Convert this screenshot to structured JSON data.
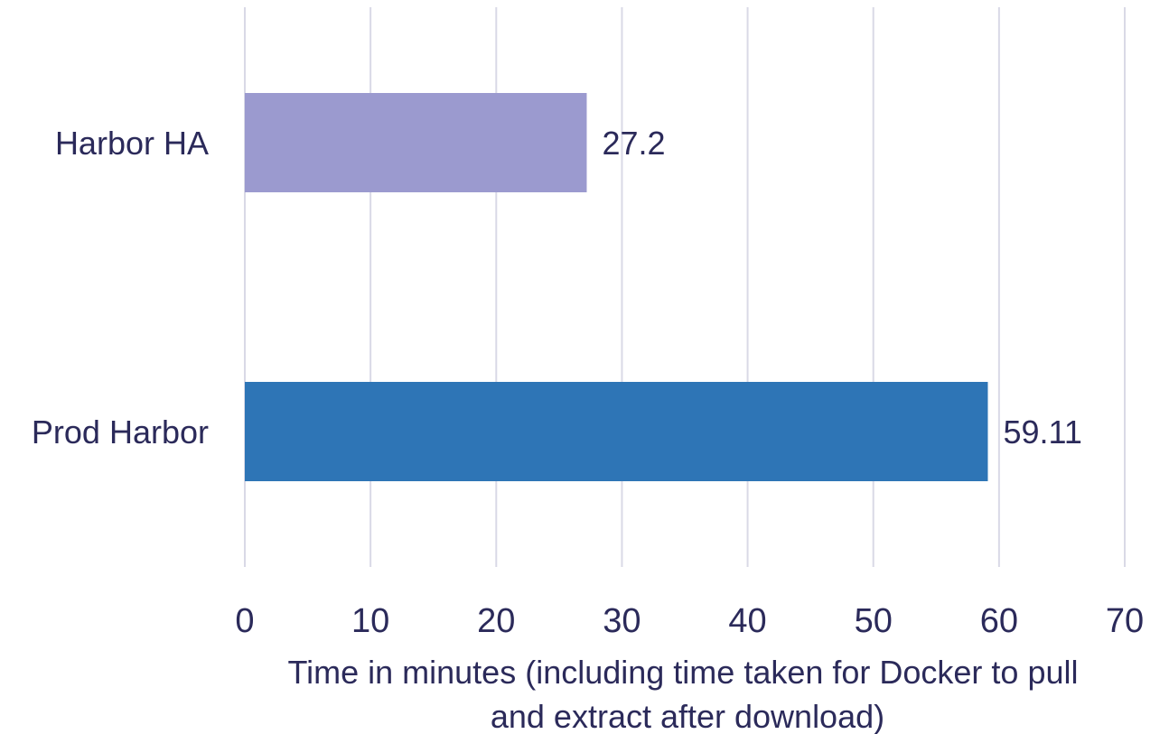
{
  "chart_data": {
    "type": "bar",
    "orientation": "horizontal",
    "categories": [
      "Harbor HA",
      "Prod Harbor"
    ],
    "values": [
      27.2,
      59.11
    ],
    "data_labels": [
      "27.2",
      "59.11"
    ],
    "colors": [
      "#9b9acf",
      "#2e75b6"
    ],
    "title": "",
    "xlabel": "Time in minutes (including time taken for Docker to pull and extract after download)",
    "xlabel_lines": [
      "Time in minutes (including time taken for Docker to pull",
      "and extract after download)"
    ],
    "ylabel": "",
    "xlim": [
      0,
      70
    ],
    "xticks": [
      0,
      10,
      20,
      30,
      40,
      50,
      60,
      70
    ],
    "grid": "vertical",
    "legend": "none"
  },
  "colors": {
    "text": "#2b2a5a",
    "grid": "#d9d9e6"
  }
}
